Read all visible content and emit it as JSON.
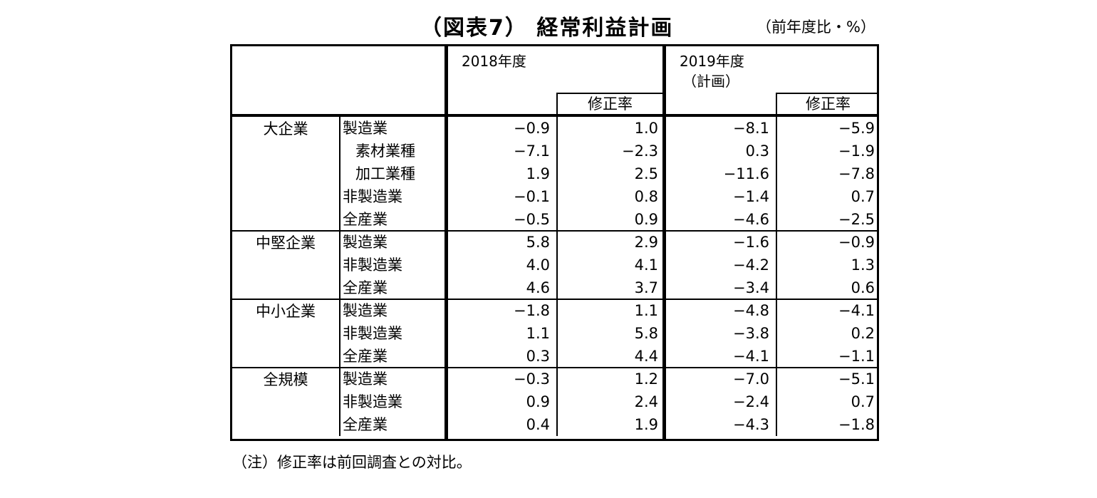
{
  "title": "（図表7） 経常利益計画",
  "unit": "（前年度比・%）",
  "headers": {
    "y2018": "2018年度",
    "y2019": "2019年度",
    "y2019_sub": "（計画）",
    "revision": "修正率"
  },
  "groups": [
    {
      "name": "大企業",
      "rows": [
        {
          "label": "製造業",
          "indent": false,
          "v": [
            "−0.9",
            "1.0",
            "−8.1",
            "−5.9"
          ]
        },
        {
          "label": "素材業種",
          "indent": true,
          "v": [
            "−7.1",
            "−2.3",
            "0.3",
            "−1.9"
          ]
        },
        {
          "label": "加工業種",
          "indent": true,
          "v": [
            "1.9",
            "2.5",
            "−11.6",
            "−7.8"
          ]
        },
        {
          "label": "非製造業",
          "indent": false,
          "v": [
            "−0.1",
            "0.8",
            "−1.4",
            "0.7"
          ]
        },
        {
          "label": "全産業",
          "indent": false,
          "v": [
            "−0.5",
            "0.9",
            "−4.6",
            "−2.5"
          ]
        }
      ]
    },
    {
      "name": "中堅企業",
      "rows": [
        {
          "label": "製造業",
          "indent": false,
          "v": [
            "5.8",
            "2.9",
            "−1.6",
            "−0.9"
          ]
        },
        {
          "label": "非製造業",
          "indent": false,
          "v": [
            "4.0",
            "4.1",
            "−4.2",
            "1.3"
          ]
        },
        {
          "label": "全産業",
          "indent": false,
          "v": [
            "4.6",
            "3.7",
            "−3.4",
            "0.6"
          ]
        }
      ]
    },
    {
      "name": "中小企業",
      "rows": [
        {
          "label": "製造業",
          "indent": false,
          "v": [
            "−1.8",
            "1.1",
            "−4.8",
            "−4.1"
          ]
        },
        {
          "label": "非製造業",
          "indent": false,
          "v": [
            "1.1",
            "5.8",
            "−3.8",
            "0.2"
          ]
        },
        {
          "label": "全産業",
          "indent": false,
          "v": [
            "0.3",
            "4.4",
            "−4.1",
            "−1.1"
          ]
        }
      ]
    },
    {
      "name": "全規模",
      "rows": [
        {
          "label": "製造業",
          "indent": false,
          "v": [
            "−0.3",
            "1.2",
            "−7.0",
            "−5.1"
          ]
        },
        {
          "label": "非製造業",
          "indent": false,
          "v": [
            "0.9",
            "2.4",
            "−2.4",
            "0.7"
          ]
        },
        {
          "label": "全産業",
          "indent": false,
          "v": [
            "0.4",
            "1.9",
            "−4.3",
            "−1.8"
          ]
        }
      ]
    }
  ],
  "note": "（注）修正率は前回調査との対比。"
}
